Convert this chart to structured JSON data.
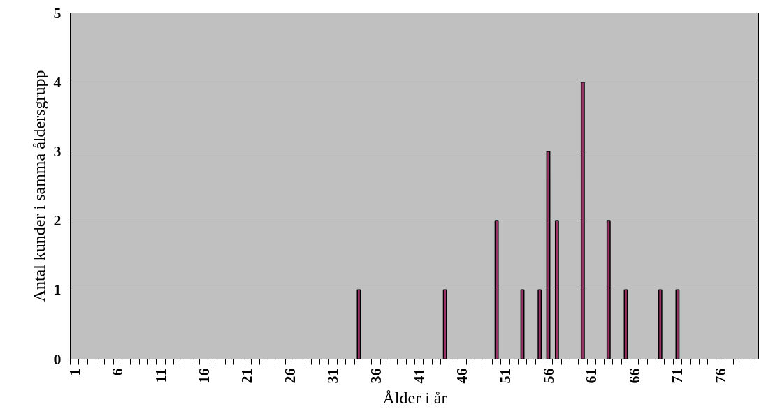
{
  "chart_data": {
    "type": "bar",
    "xlabel": "Ålder i år",
    "ylabel": "Antal kunder i samma åldersgrupp",
    "categories": [
      "1",
      null,
      null,
      null,
      null,
      "6",
      null,
      null,
      null,
      null,
      "11",
      null,
      null,
      null,
      null,
      "16",
      null,
      null,
      null,
      null,
      "21",
      null,
      null,
      null,
      null,
      "26",
      null,
      null,
      null,
      null,
      "31",
      null,
      null,
      null,
      null,
      "36",
      null,
      null,
      null,
      null,
      "41",
      null,
      null,
      null,
      null,
      "46",
      null,
      null,
      null,
      null,
      "51",
      null,
      null,
      null,
      null,
      "56",
      null,
      null,
      null,
      null,
      "61",
      null,
      null,
      null,
      null,
      "66",
      null,
      null,
      null,
      null,
      "71",
      null,
      null,
      null,
      null,
      "76",
      null,
      null,
      null,
      null
    ],
    "values": [
      null,
      null,
      null,
      null,
      null,
      null,
      null,
      null,
      null,
      null,
      null,
      null,
      null,
      null,
      null,
      null,
      null,
      null,
      null,
      null,
      null,
      null,
      null,
      null,
      null,
      null,
      null,
      null,
      null,
      null,
      null,
      null,
      null,
      1,
      null,
      null,
      null,
      null,
      null,
      null,
      null,
      null,
      null,
      1,
      null,
      null,
      null,
      null,
      null,
      2,
      null,
      null,
      1,
      null,
      1,
      3,
      2,
      null,
      null,
      4,
      null,
      null,
      2,
      null,
      1,
      null,
      null,
      null,
      1,
      null,
      1,
      null,
      null,
      null,
      null,
      null,
      null,
      null,
      null,
      null
    ],
    "color": "#993366",
    "ylim": [
      0,
      5
    ],
    "yticks": [
      0,
      1,
      2,
      3,
      4,
      5
    ],
    "grid": "y"
  }
}
